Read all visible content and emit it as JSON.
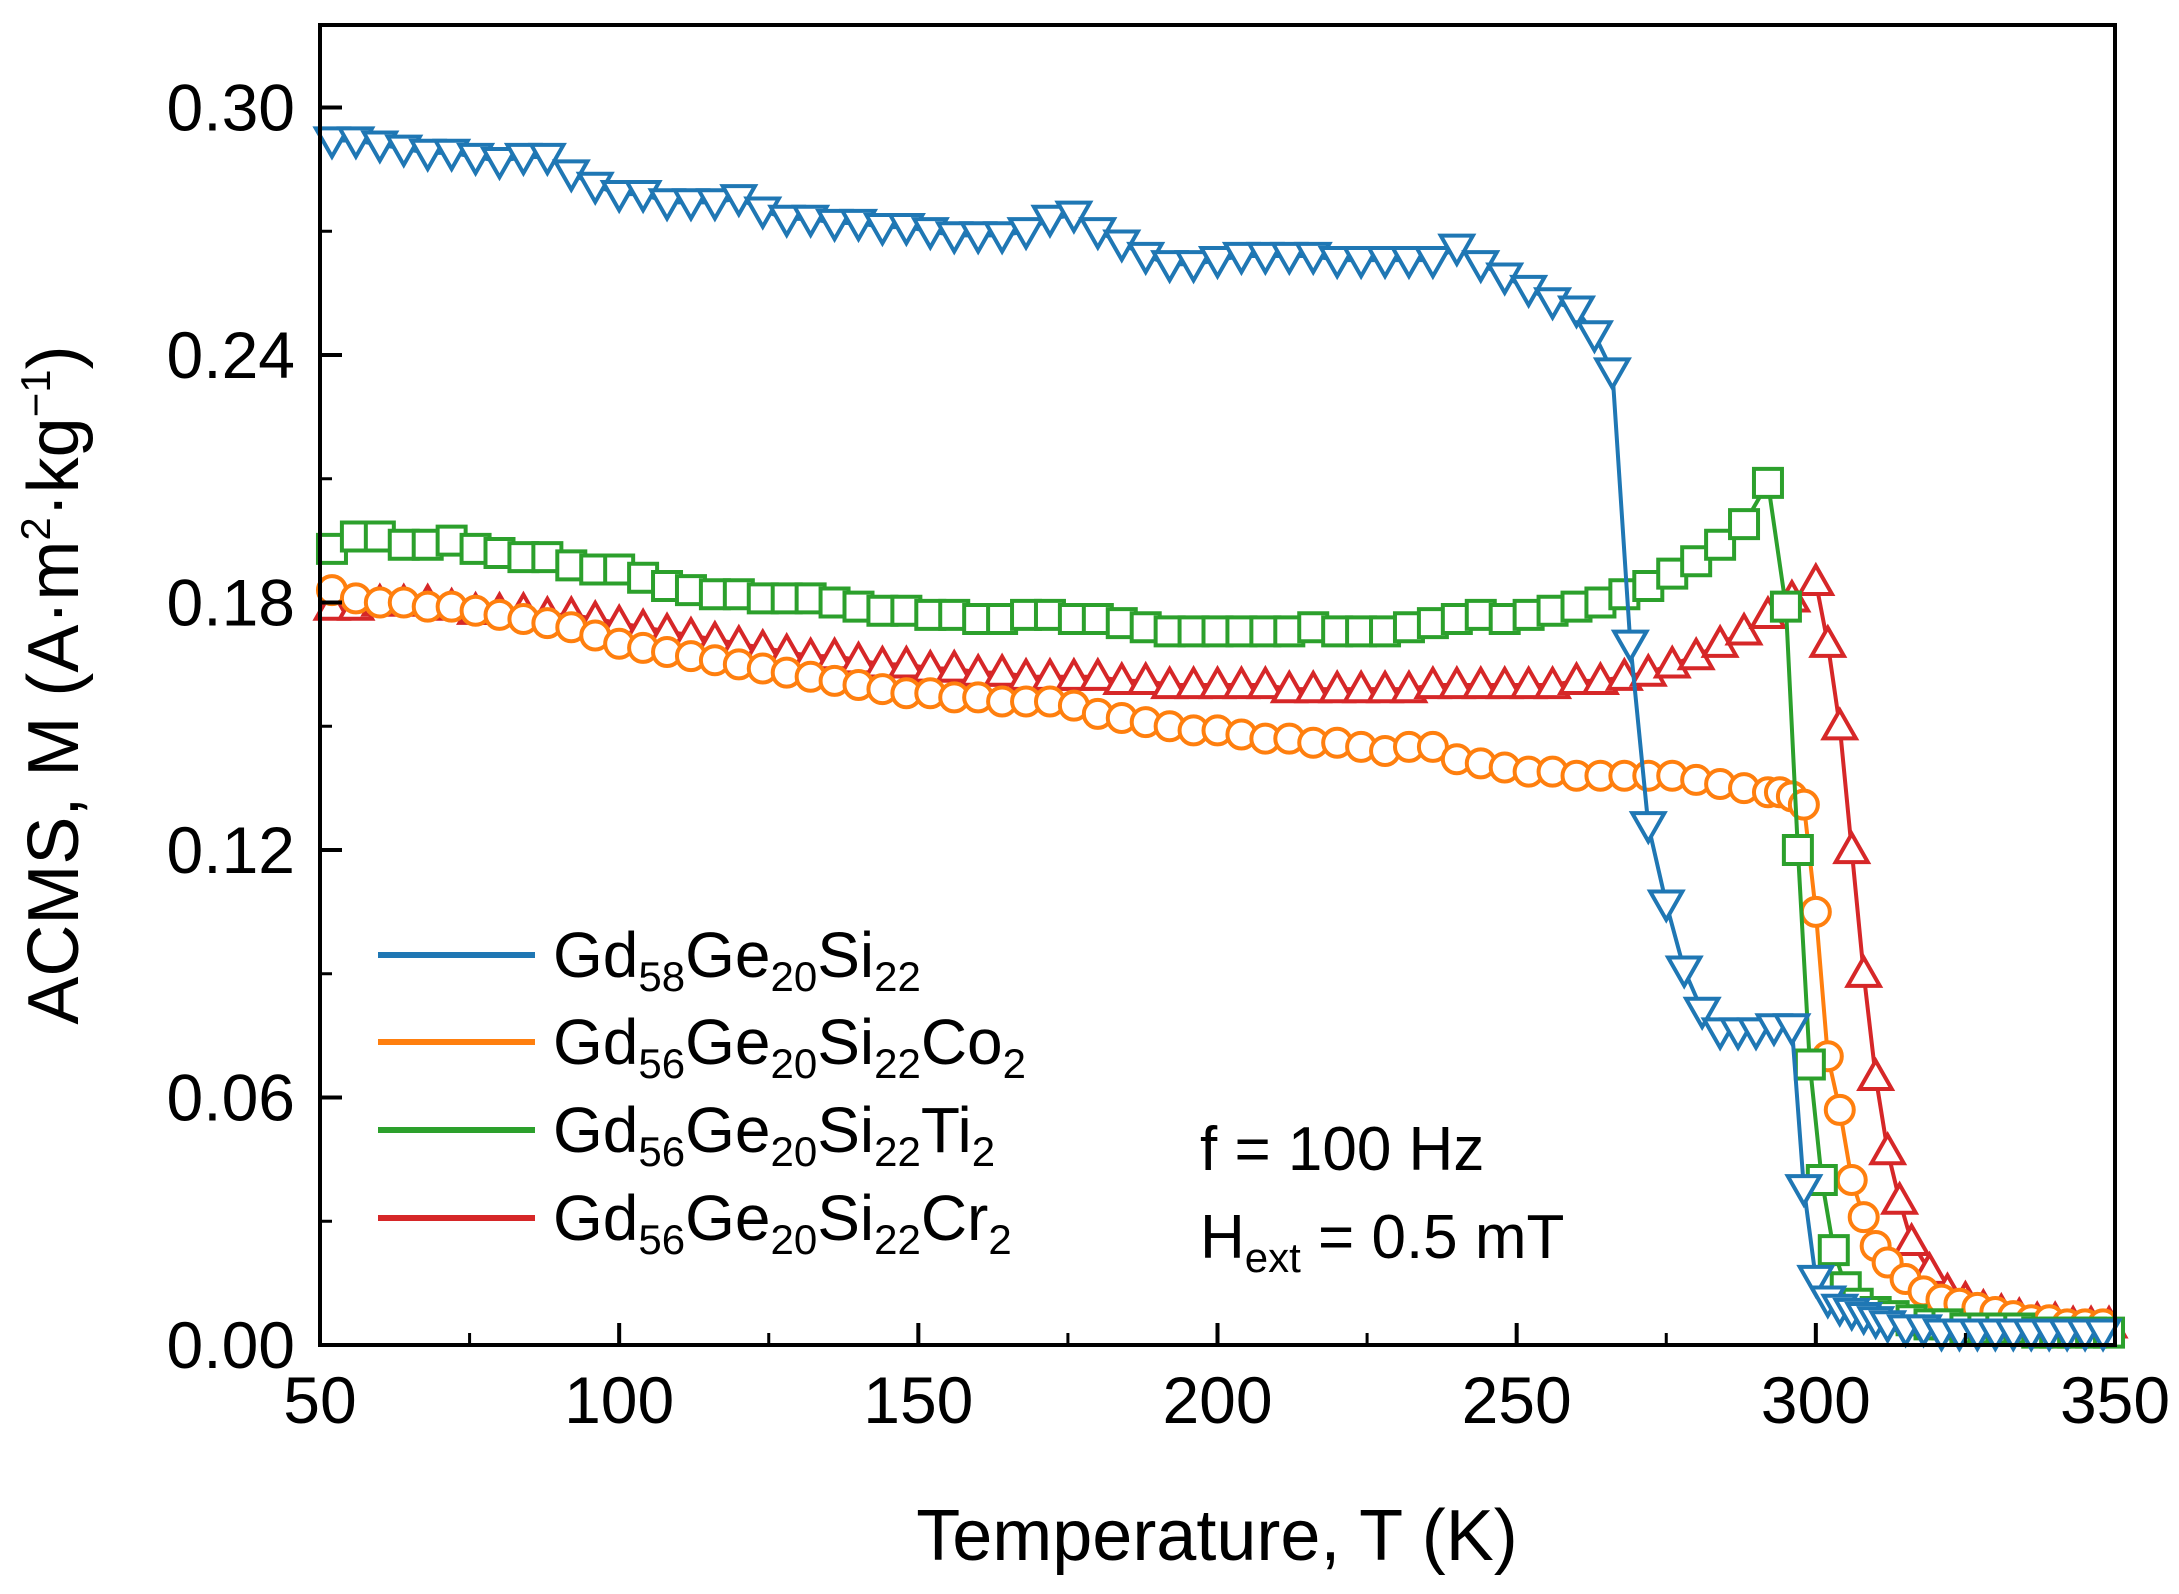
{
  "chart_data": {
    "type": "line",
    "xlabel": "Temperature, T (K)",
    "ylabel_main": "ACMS, M (A·m",
    "ylabel_sup1": "2",
    "ylabel_mid": "·kg",
    "ylabel_sup2": "−1",
    "ylabel_end": ")",
    "xlim": [
      50,
      350
    ],
    "ylim": [
      0,
      0.32
    ],
    "xticks": [
      50,
      100,
      150,
      200,
      250,
      300,
      350
    ],
    "xtick_labels": [
      "50",
      "100",
      "150",
      "200",
      "250",
      "300",
      "350"
    ],
    "yticks": [
      0,
      0.06,
      0.12,
      0.18,
      0.24,
      0.3
    ],
    "ytick_labels": [
      "0.00",
      "0.06",
      "0.12",
      "0.18",
      "0.24",
      "0.30"
    ],
    "annotations": {
      "freq": "f = 100 Hz",
      "field_H": "H",
      "field_sub": "ext",
      "field_rest": " = 0.5 mT"
    },
    "series": [
      {
        "name": "Gd58Ge20Si22",
        "legend_parts": [
          [
            "Gd",
            ""
          ],
          [
            "58",
            "sub"
          ],
          [
            "Ge",
            ""
          ],
          [
            "20",
            "sub"
          ],
          [
            "Si",
            ""
          ],
          [
            "22",
            "sub"
          ]
        ],
        "color": "#1f77b4",
        "marker": "triangle-down",
        "x": [
          52,
          56,
          60,
          64,
          68,
          72,
          76,
          80,
          84,
          88,
          92,
          96,
          100,
          104,
          108,
          112,
          116,
          120,
          124,
          128,
          132,
          136,
          140,
          144,
          148,
          152,
          156,
          160,
          164,
          168,
          172,
          176,
          180,
          184,
          188,
          192,
          196,
          200,
          204,
          208,
          212,
          216,
          220,
          224,
          228,
          232,
          236,
          240,
          244,
          248,
          252,
          256,
          260,
          263,
          266,
          269,
          272,
          275,
          278,
          281,
          284,
          287,
          290,
          293,
          296,
          298,
          300,
          302,
          304,
          306,
          308,
          310,
          312,
          315,
          318,
          321,
          324,
          327,
          330,
          333,
          336,
          339,
          342,
          345,
          348
        ],
        "y": [
          0.292,
          0.292,
          0.291,
          0.29,
          0.289,
          0.289,
          0.288,
          0.287,
          0.288,
          0.288,
          0.284,
          0.281,
          0.279,
          0.279,
          0.277,
          0.277,
          0.277,
          0.278,
          0.275,
          0.273,
          0.273,
          0.272,
          0.272,
          0.271,
          0.271,
          0.27,
          0.269,
          0.269,
          0.269,
          0.27,
          0.273,
          0.274,
          0.27,
          0.267,
          0.264,
          0.262,
          0.262,
          0.263,
          0.264,
          0.264,
          0.264,
          0.264,
          0.263,
          0.263,
          0.263,
          0.263,
          0.263,
          0.266,
          0.262,
          0.259,
          0.256,
          0.253,
          0.251,
          0.245,
          0.236,
          0.17,
          0.126,
          0.107,
          0.091,
          0.081,
          0.076,
          0.076,
          0.076,
          0.077,
          0.077,
          0.038,
          0.016,
          0.011,
          0.009,
          0.008,
          0.007,
          0.006,
          0.005,
          0.004,
          0.004,
          0.003,
          0.003,
          0.003,
          0.003,
          0.003,
          0.003,
          0.003,
          0.003,
          0.003,
          0.003
        ]
      },
      {
        "name": "Gd56Ge20Si22Co2",
        "legend_parts": [
          [
            "Gd",
            ""
          ],
          [
            "56",
            "sub"
          ],
          [
            "Ge",
            ""
          ],
          [
            "20",
            "sub"
          ],
          [
            "Si",
            ""
          ],
          [
            "22",
            "sub"
          ],
          [
            "Co",
            ""
          ],
          [
            "2",
            "sub"
          ]
        ],
        "color": "#ff7f0e",
        "marker": "circle",
        "x": [
          52,
          56,
          60,
          64,
          68,
          72,
          76,
          80,
          84,
          88,
          92,
          96,
          100,
          104,
          108,
          112,
          116,
          120,
          124,
          128,
          132,
          136,
          140,
          144,
          148,
          152,
          156,
          160,
          164,
          168,
          172,
          176,
          180,
          184,
          188,
          192,
          196,
          200,
          204,
          208,
          212,
          216,
          220,
          224,
          228,
          232,
          236,
          240,
          244,
          248,
          252,
          256,
          260,
          264,
          268,
          272,
          276,
          280,
          284,
          288,
          292,
          294,
          296,
          298,
          300,
          302,
          304,
          306,
          308,
          310,
          312,
          315,
          318,
          321,
          324,
          327,
          330,
          333,
          336,
          339,
          342,
          345,
          348
        ],
        "y": [
          0.183,
          0.181,
          0.18,
          0.18,
          0.179,
          0.179,
          0.178,
          0.177,
          0.176,
          0.175,
          0.174,
          0.172,
          0.17,
          0.169,
          0.168,
          0.167,
          0.166,
          0.165,
          0.164,
          0.163,
          0.162,
          0.161,
          0.16,
          0.159,
          0.158,
          0.158,
          0.157,
          0.157,
          0.156,
          0.156,
          0.156,
          0.155,
          0.153,
          0.152,
          0.151,
          0.15,
          0.149,
          0.149,
          0.148,
          0.147,
          0.147,
          0.146,
          0.146,
          0.145,
          0.144,
          0.145,
          0.145,
          0.142,
          0.141,
          0.14,
          0.139,
          0.139,
          0.138,
          0.138,
          0.138,
          0.138,
          0.138,
          0.137,
          0.136,
          0.135,
          0.134,
          0.134,
          0.133,
          0.131,
          0.105,
          0.07,
          0.057,
          0.04,
          0.031,
          0.024,
          0.02,
          0.016,
          0.013,
          0.011,
          0.01,
          0.009,
          0.008,
          0.007,
          0.006,
          0.006,
          0.005,
          0.005,
          0.005
        ]
      },
      {
        "name": "Gd56Ge20Si22Ti2",
        "legend_parts": [
          [
            "Gd",
            ""
          ],
          [
            "56",
            "sub"
          ],
          [
            "Ge",
            ""
          ],
          [
            "20",
            "sub"
          ],
          [
            "Si",
            ""
          ],
          [
            "22",
            "sub"
          ],
          [
            "Ti",
            ""
          ],
          [
            "2",
            "sub"
          ]
        ],
        "color": "#2ca02c",
        "marker": "square",
        "x": [
          52,
          56,
          60,
          64,
          68,
          72,
          76,
          80,
          84,
          88,
          92,
          96,
          100,
          104,
          108,
          112,
          116,
          120,
          124,
          128,
          132,
          136,
          140,
          144,
          148,
          152,
          156,
          160,
          164,
          168,
          172,
          176,
          180,
          184,
          188,
          192,
          196,
          200,
          204,
          208,
          212,
          216,
          220,
          224,
          228,
          232,
          236,
          240,
          244,
          248,
          252,
          256,
          260,
          264,
          268,
          272,
          276,
          280,
          284,
          288,
          292,
          295,
          297,
          299,
          301,
          303,
          305,
          307,
          310,
          313,
          316,
          319,
          322,
          325,
          328,
          331,
          334,
          337,
          340,
          343,
          346,
          349
        ],
        "y": [
          0.193,
          0.196,
          0.196,
          0.194,
          0.194,
          0.195,
          0.193,
          0.192,
          0.191,
          0.191,
          0.189,
          0.188,
          0.188,
          0.186,
          0.184,
          0.183,
          0.182,
          0.182,
          0.181,
          0.181,
          0.181,
          0.18,
          0.179,
          0.178,
          0.178,
          0.177,
          0.177,
          0.176,
          0.176,
          0.177,
          0.177,
          0.176,
          0.176,
          0.175,
          0.174,
          0.173,
          0.173,
          0.173,
          0.173,
          0.173,
          0.173,
          0.174,
          0.173,
          0.173,
          0.173,
          0.174,
          0.175,
          0.176,
          0.177,
          0.176,
          0.177,
          0.178,
          0.179,
          0.18,
          0.182,
          0.184,
          0.187,
          0.19,
          0.194,
          0.199,
          0.209,
          0.179,
          0.12,
          0.068,
          0.04,
          0.023,
          0.014,
          0.01,
          0.008,
          0.007,
          0.006,
          0.005,
          0.005,
          0.004,
          0.004,
          0.004,
          0.004,
          0.003,
          0.003,
          0.003,
          0.003,
          0.003
        ]
      },
      {
        "name": "Gd56Ge20Si22Cr2",
        "legend_parts": [
          [
            "Gd",
            ""
          ],
          [
            "56",
            "sub"
          ],
          [
            "Ge",
            ""
          ],
          [
            "20",
            "sub"
          ],
          [
            "Si",
            ""
          ],
          [
            "22",
            "sub"
          ],
          [
            "Cr",
            ""
          ],
          [
            "2",
            "sub"
          ]
        ],
        "color": "#d62728",
        "marker": "triangle-up",
        "x": [
          52,
          56,
          60,
          64,
          68,
          72,
          76,
          80,
          84,
          88,
          92,
          96,
          100,
          104,
          108,
          112,
          116,
          120,
          124,
          128,
          132,
          136,
          140,
          144,
          148,
          152,
          156,
          160,
          164,
          168,
          172,
          176,
          180,
          184,
          188,
          192,
          196,
          200,
          204,
          208,
          212,
          216,
          220,
          224,
          228,
          232,
          236,
          240,
          244,
          248,
          252,
          256,
          260,
          264,
          268,
          272,
          276,
          280,
          284,
          288,
          292,
          296,
          300,
          302,
          304,
          306,
          308,
          310,
          312,
          314,
          316,
          319,
          322,
          325,
          328,
          331,
          334,
          337,
          340,
          343,
          346,
          349
        ],
        "y": [
          0.179,
          0.179,
          0.18,
          0.18,
          0.18,
          0.179,
          0.178,
          0.178,
          0.178,
          0.177,
          0.177,
          0.176,
          0.175,
          0.174,
          0.173,
          0.172,
          0.171,
          0.17,
          0.169,
          0.168,
          0.167,
          0.167,
          0.166,
          0.165,
          0.165,
          0.164,
          0.164,
          0.163,
          0.163,
          0.162,
          0.162,
          0.162,
          0.162,
          0.161,
          0.161,
          0.16,
          0.16,
          0.16,
          0.16,
          0.16,
          0.159,
          0.159,
          0.159,
          0.159,
          0.159,
          0.159,
          0.16,
          0.16,
          0.16,
          0.16,
          0.16,
          0.16,
          0.161,
          0.161,
          0.162,
          0.163,
          0.165,
          0.167,
          0.17,
          0.173,
          0.177,
          0.181,
          0.185,
          0.17,
          0.15,
          0.12,
          0.09,
          0.065,
          0.047,
          0.035,
          0.025,
          0.018,
          0.013,
          0.011,
          0.009,
          0.008,
          0.007,
          0.006,
          0.006,
          0.005,
          0.005,
          0.005
        ]
      }
    ]
  }
}
